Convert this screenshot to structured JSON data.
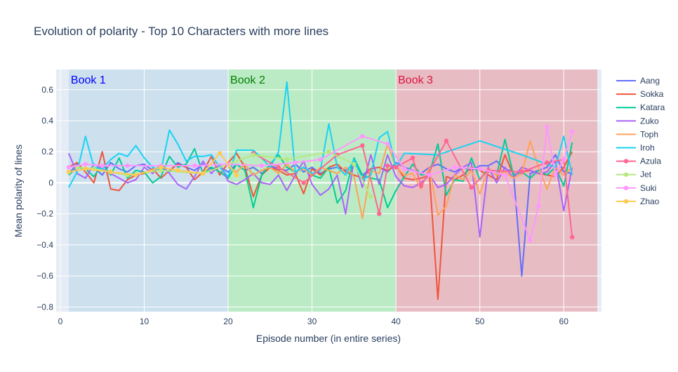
{
  "chart_data": {
    "type": "line",
    "title": "Evolution of polarity - Top 10 Characters with more lines",
    "xlabel": "Episode number (in entire series)",
    "ylabel": "Mean polarity of lines",
    "xlim": [
      -0.5,
      64.5
    ],
    "ylim": [
      -0.83,
      0.73
    ],
    "x_ticks": [
      0,
      10,
      20,
      30,
      40,
      50,
      60
    ],
    "y_ticks": [
      -0.8,
      -0.6,
      -0.4,
      -0.2,
      0,
      0.2,
      0.4,
      0.6
    ],
    "grid": true,
    "legend_position": "right",
    "books": [
      {
        "label": "Book 1",
        "x0": 1,
        "x1": 20,
        "fill": "#cce0ee",
        "text_color": "#0000ff"
      },
      {
        "label": "Book 2",
        "x0": 20,
        "x1": 40,
        "fill": "#bbebc4",
        "text_color": "#008000"
      },
      {
        "label": "Book 3",
        "x0": 40,
        "x1": 64,
        "fill": "#e8bcc3",
        "text_color": "#dc143c"
      }
    ],
    "series": [
      {
        "name": "Aang",
        "color": "#636efa",
        "marker": false,
        "x": [
          1,
          2,
          3,
          4,
          5,
          6,
          7,
          8,
          9,
          10,
          11,
          12,
          13,
          14,
          15,
          16,
          17,
          18,
          19,
          20,
          21,
          22,
          23,
          24,
          25,
          26,
          27,
          28,
          29,
          30,
          31,
          32,
          33,
          34,
          35,
          36,
          37,
          38,
          39,
          40,
          41,
          42,
          43,
          44,
          45,
          46,
          47,
          48,
          49,
          50,
          51,
          52,
          53,
          54,
          55,
          56,
          57,
          58,
          59,
          60,
          61
        ],
        "y": [
          0.06,
          0.12,
          0.08,
          0.1,
          0.05,
          0.13,
          0.09,
          0.07,
          0.11,
          0.12,
          0.08,
          0.1,
          0.07,
          0.13,
          0.1,
          0.08,
          0.12,
          0.09,
          0.1,
          0.07,
          0.12,
          0.08,
          0.1,
          0.06,
          0.11,
          0.09,
          0.08,
          0.12,
          0.07,
          0.1,
          0.06,
          0.09,
          0.1,
          0.08,
          0.12,
          0.05,
          0.09,
          0.1,
          0.07,
          0.13,
          0.1,
          0.08,
          0.06,
          0.1,
          0.12,
          0.09,
          0.07,
          0.1,
          0.08,
          0.11,
          0.11,
          0.14,
          0.09,
          0.07,
          -0.6,
          0.06,
          0.08,
          0.1,
          0.18,
          0.07,
          0.06
        ]
      },
      {
        "name": "Sokka",
        "color": "#ef553b",
        "marker": false,
        "x": [
          1,
          2,
          3,
          4,
          5,
          6,
          7,
          8,
          9,
          10,
          11,
          12,
          13,
          14,
          15,
          16,
          17,
          18,
          19,
          20,
          21,
          22,
          23,
          24,
          25,
          26,
          27,
          28,
          29,
          30,
          31,
          32,
          33,
          34,
          35,
          36,
          37,
          38,
          39,
          40,
          41,
          42,
          43,
          44,
          45,
          46,
          47,
          48,
          49,
          50,
          51,
          52,
          53,
          54,
          55,
          56,
          57,
          58,
          59,
          60,
          61
        ],
        "y": [
          0.1,
          0.13,
          0.07,
          0.0,
          0.2,
          -0.04,
          -0.05,
          0.02,
          0.05,
          0.06,
          0.09,
          0.03,
          0.08,
          0.12,
          0.1,
          0.02,
          0.07,
          0.17,
          0.05,
          0.13,
          0.19,
          0.1,
          -0.09,
          0.05,
          0.1,
          0.08,
          0.05,
          0.06,
          -0.07,
          0.09,
          0.05,
          0.1,
          0.12,
          0.07,
          0.05,
          0.03,
          0.09,
          0.1,
          0.08,
          0.11,
          0.03,
          0.02,
          0.03,
          0.05,
          -0.75,
          0.04,
          0.02,
          0.05,
          0.1,
          0.08,
          0.05,
          0.02,
          0.18,
          0.05,
          0.07,
          0.08,
          0.06,
          0.05,
          0.04,
          0.1,
          0.2
        ]
      },
      {
        "name": "Katara",
        "color": "#00cc96",
        "marker": false,
        "x": [
          1,
          2,
          3,
          4,
          5,
          6,
          7,
          8,
          9,
          10,
          11,
          12,
          13,
          14,
          15,
          16,
          17,
          18,
          19,
          20,
          21,
          22,
          23,
          24,
          25,
          26,
          27,
          28,
          29,
          30,
          31,
          32,
          33,
          34,
          35,
          36,
          37,
          38,
          39,
          40,
          41,
          42,
          43,
          44,
          45,
          46,
          47,
          48,
          49,
          50,
          51,
          52,
          53,
          54,
          55,
          56,
          57,
          58,
          59,
          60,
          61
        ],
        "y": [
          0.05,
          0.1,
          0.09,
          0.04,
          0.12,
          0.05,
          0.16,
          0.03,
          0.08,
          0.07,
          0.0,
          0.04,
          0.17,
          0.1,
          0.12,
          0.22,
          0.06,
          0.1,
          0.07,
          0.03,
          0.12,
          0.08,
          -0.16,
          0.05,
          0.12,
          0.18,
          0.1,
          0.07,
          0.1,
          0.05,
          0.03,
          0.1,
          -0.13,
          -0.05,
          0.16,
          0.05,
          0.03,
          0.02,
          -0.16,
          -0.05,
          0.04,
          0.12,
          0.05,
          0.06,
          0.25,
          -0.08,
          0.02,
          0.01,
          0.16,
          0.02,
          0.09,
          0.05,
          0.28,
          0.05,
          0.07,
          0.03,
          0.08,
          0.05,
          0.1,
          -0.02,
          0.26
        ]
      },
      {
        "name": "Zuko",
        "color": "#ab63fa",
        "marker": false,
        "x": [
          1,
          2,
          3,
          4,
          5,
          6,
          7,
          8,
          9,
          10,
          11,
          12,
          13,
          14,
          15,
          16,
          17,
          18,
          19,
          20,
          21,
          22,
          23,
          24,
          25,
          26,
          27,
          28,
          29,
          30,
          31,
          32,
          33,
          34,
          35,
          36,
          37,
          38,
          39,
          40,
          41,
          42,
          43,
          44,
          45,
          46,
          47,
          48,
          49,
          50,
          51,
          52,
          53,
          54,
          55,
          56,
          57,
          58,
          59,
          60,
          61
        ],
        "y": [
          0.19,
          0.06,
          0.03,
          0.12,
          0.09,
          0.06,
          0.03,
          0.0,
          0.02,
          0.1,
          0.06,
          0.12,
          0.06,
          -0.01,
          -0.04,
          0.04,
          0.14,
          0.06,
          0.12,
          0.01,
          -0.01,
          0.02,
          0.06,
          0.0,
          -0.01,
          0.05,
          -0.05,
          0.05,
          0.14,
          -0.01,
          -0.08,
          -0.04,
          0.05,
          -0.2,
          0.15,
          -0.03,
          0.18,
          -0.01,
          0.18,
          0.04,
          -0.02,
          -0.03,
          0.0,
          0.05,
          -0.03,
          -0.01,
          0.05,
          0.1,
          0.13,
          -0.35,
          0.1,
          0.0,
          0.1,
          0.03,
          0.1,
          0.08,
          0.06,
          0.07,
          0.14,
          -0.18,
          0.1
        ]
      },
      {
        "name": "Toph",
        "color": "#ffa15a",
        "marker": false,
        "x": [
          20,
          21,
          22,
          23,
          24,
          25,
          26,
          27,
          28,
          29,
          30,
          31,
          32,
          33,
          34,
          35,
          36,
          37,
          38,
          39,
          40,
          41,
          42,
          43,
          44,
          45,
          46,
          47,
          48,
          49,
          50,
          51,
          52,
          53,
          54,
          55,
          56,
          57,
          58,
          59,
          60,
          61
        ],
        "y": [
          0.1,
          0.07,
          0.12,
          0.05,
          0.08,
          0.1,
          0.06,
          0.12,
          0.07,
          0.09,
          0.05,
          0.1,
          0.08,
          0.06,
          0.1,
          0.04,
          -0.23,
          0.08,
          0.06,
          0.25,
          0.1,
          0.05,
          0.06,
          -0.04,
          0.1,
          -0.21,
          -0.15,
          0.05,
          0.02,
          0.08,
          -0.07,
          0.09,
          0.05,
          0.07,
          0.03,
          0.06,
          0.27,
          0.1,
          -0.04,
          0.1,
          0.05,
          0.1
        ]
      },
      {
        "name": "Iroh",
        "color": "#19d3f3",
        "marker": false,
        "x": [
          1,
          2,
          3,
          4,
          5,
          6,
          7,
          8,
          9,
          10,
          11,
          12,
          13,
          14,
          15,
          16,
          17,
          18,
          19,
          20,
          21,
          22,
          23,
          24,
          25,
          26,
          27,
          28,
          29,
          30,
          31,
          32,
          33,
          34,
          35,
          36,
          37,
          38,
          39,
          40,
          41,
          45,
          50,
          55,
          58,
          59,
          60,
          61
        ],
        "y": [
          -0.03,
          0.07,
          0.3,
          0.1,
          0.09,
          0.15,
          0.19,
          0.17,
          0.24,
          0.16,
          0.1,
          0.08,
          0.34,
          0.25,
          0.14,
          0.17,
          0.17,
          0.18,
          0.1,
          0.04,
          0.21,
          0.21,
          0.21,
          0.16,
          0.1,
          0.2,
          0.65,
          0.07,
          0.1,
          0.06,
          0.08,
          0.38,
          0.1,
          0.05,
          0.15,
          0.02,
          0.05,
          0.29,
          0.33,
          0.1,
          0.19,
          0.18,
          0.27,
          0.18,
          0.12,
          0.1,
          0.3,
          0.05
        ]
      },
      {
        "name": "Azula",
        "color": "#ff6692",
        "marker": true,
        "x": [
          23,
          26,
          29,
          33,
          36,
          38,
          39,
          40,
          42,
          43,
          46,
          49,
          51,
          55,
          58,
          60,
          61
        ],
        "y": [
          0.19,
          0.1,
          0.0,
          0.18,
          0.24,
          -0.2,
          0.11,
          0.1,
          0.16,
          -0.02,
          0.27,
          -0.03,
          0.08,
          0.07,
          0.13,
          0.15,
          -0.35
        ]
      },
      {
        "name": "Jet",
        "color": "#b6e880",
        "marker": true,
        "x": [
          2,
          4,
          8,
          12,
          17,
          23,
          27,
          32,
          35,
          37
        ],
        "y": [
          0.1,
          0.09,
          0.05,
          0.08,
          0.06,
          0.18,
          0.15,
          0.2,
          0.12,
          -0.09
        ]
      },
      {
        "name": "Suki",
        "color": "#ff97ff",
        "marker": true,
        "x": [
          1,
          3,
          5,
          8,
          12,
          16,
          20,
          24,
          28,
          31,
          36,
          39,
          41,
          44,
          47,
          50,
          53,
          56,
          57,
          58,
          59,
          60,
          61
        ],
        "y": [
          0.1,
          0.12,
          0.11,
          0.11,
          0.11,
          0.11,
          0.12,
          0.11,
          0.13,
          0.15,
          0.3,
          0.25,
          0.09,
          0.05,
          0.1,
          0.09,
          0.05,
          -0.37,
          -0.15,
          0.36,
          0.05,
          0.15,
          0.33
        ]
      },
      {
        "name": "Zhao",
        "color": "#fecb52",
        "marker": true,
        "x": [
          1,
          3,
          6,
          9,
          12,
          14,
          17,
          19,
          21
        ],
        "y": [
          0.07,
          0.09,
          0.07,
          0.05,
          0.1,
          0.08,
          0.06,
          0.19,
          0.05
        ]
      }
    ]
  }
}
